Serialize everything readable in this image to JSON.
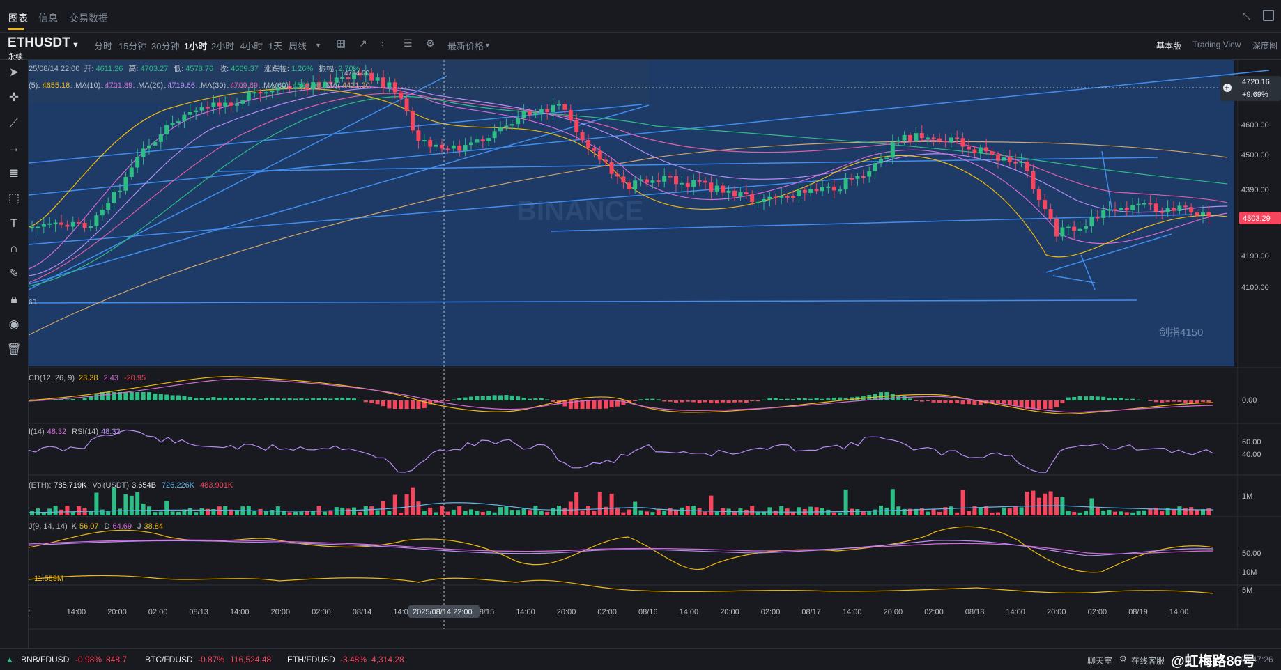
{
  "top_tabs": [
    {
      "label": "图表",
      "active": true
    },
    {
      "label": "信息",
      "active": false
    },
    {
      "label": "交易数据",
      "active": false
    }
  ],
  "symbol": {
    "name": "ETHUSDT",
    "type": "永续"
  },
  "timeframes": [
    {
      "label": "分时",
      "active": false
    },
    {
      "label": "15分钟",
      "active": false
    },
    {
      "label": "30分钟",
      "active": false
    },
    {
      "label": "1小时",
      "active": true
    },
    {
      "label": "2小时",
      "active": false
    },
    {
      "label": "4小时",
      "active": false
    },
    {
      "label": "1天",
      "active": false
    },
    {
      "label": "周线",
      "active": false
    }
  ],
  "price_type_label": "最新价格",
  "views": [
    {
      "label": "基本版",
      "active": true
    },
    {
      "label": "Trading View",
      "active": false
    },
    {
      "label": "深度图",
      "active": false
    }
  ],
  "ohlc": {
    "date": "25/08/14 22:00",
    "open_label": "开:",
    "open": "4611.26",
    "high_label": "高:",
    "high": "4703.27",
    "low_label": "低:",
    "low": "4578.76",
    "close_label": "收:",
    "close": "4669.37",
    "change_label": "涨跌幅:",
    "change": "1.26%",
    "amp_label": "振幅:",
    "amp": "2.70%"
  },
  "ma_legend": [
    {
      "label": "(5):",
      "value": "4655.18",
      "color": "#f0b90b"
    },
    {
      "label": "MA(10):",
      "value": "4701.89",
      "color": "#d66bd8"
    },
    {
      "label": "MA(20):",
      "value": "4719.66",
      "color": "#b98cf5"
    },
    {
      "label": "MA(30):",
      "value": "4709.69",
      "color": "#e05fa8"
    },
    {
      "label": "MA(60):",
      "value": "4592.96",
      "color": "#2fbd85"
    },
    {
      "label": "MA(",
      "value": "4421.20",
      "color": "#d2a56a"
    }
  ],
  "chart_annotations": {
    "high_marker": "4794.00",
    "low_marker": "60",
    "box_label": "剑指4150",
    "watermark": "BINANCE"
  },
  "price_axis": {
    "ticks": [
      "4600.00",
      "4500.00",
      "4390.00",
      "4190.00",
      "4100.00"
    ],
    "crosshair_price": "4720.16",
    "crosshair_pct": "+9.69%",
    "current_price": "4303.29",
    "current_color": "#f6465d"
  },
  "macd": {
    "label": "CD(12, 26, 9)",
    "dif": "23.38",
    "dea": "2.43",
    "macd": "-20.95",
    "axis": "0.00"
  },
  "rsi": {
    "label1": "I(14)",
    "v1": "48.32",
    "label2": "RSI(14)",
    "v2": "48.32",
    "axis": [
      "60.00",
      "40.00"
    ]
  },
  "volume": {
    "label1": "(ETH):",
    "v1": "785.719K",
    "label2": "Vol(USDT)",
    "v2": "3.654B",
    "v3": "726.226K",
    "v4": "483.901K",
    "axis": "1M"
  },
  "kdj": {
    "label": "J(9, 14, 14)",
    "k_label": "K",
    "k": "56.07",
    "d_label": "D",
    "d": "64.69",
    "j_label": "J",
    "j": "38.84",
    "axis": "50.00"
  },
  "oi": {
    "value": "11.589M",
    "axis": [
      "10M",
      "5M"
    ]
  },
  "time_axis": [
    "2",
    "14:00",
    "20:00",
    "02:00",
    "08/13",
    "14:00",
    "20:00",
    "02:00",
    "08/14",
    "14:00",
    "",
    "08/15",
    "14:00",
    "20:00",
    "02:00",
    "08/16",
    "14:00",
    "20:00",
    "02:00",
    "08/17",
    "14:00",
    "20:00",
    "02:00",
    "08/18",
    "14:00",
    "20:00",
    "02:00",
    "08/19",
    "14:00"
  ],
  "crosshair_time": "2025/08/14 22:00",
  "tickers": [
    {
      "pair": "BNB/FDUSD",
      "change": "-0.98%",
      "price": "848.7"
    },
    {
      "pair": "BTC/FDUSD",
      "change": "-0.87%",
      "price": "116,524.48"
    },
    {
      "pair": "ETH/FDUSD",
      "change": "-3.48%",
      "price": "4,314.28"
    }
  ],
  "footer": {
    "chat": "聊天室",
    "support": "在线客服",
    "time": "08:47:26",
    "user": "@虹梅路86号"
  },
  "colors": {
    "up": "#2ebd85",
    "down": "#f6465d",
    "bg": "#181a20",
    "box": "#1e3a66",
    "line": "#3f8ef0"
  },
  "chart_data": {
    "type": "candlestick",
    "symbol": "ETHUSDT",
    "interval": "1小时",
    "x_range": [
      "08/12",
      "08/19"
    ],
    "y_range": [
      4100,
      4794
    ],
    "last_price": 4303.29
  }
}
